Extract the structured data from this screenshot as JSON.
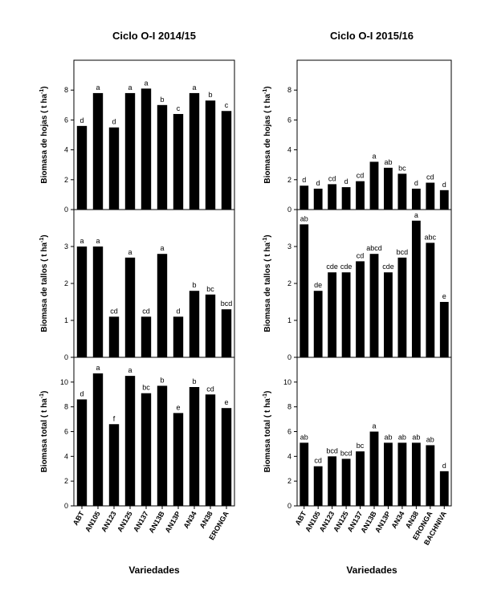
{
  "figure": {
    "left_title": "Ciclo O-I 2014/15",
    "right_title": "Ciclo O-I 2015/16",
    "x_title": "Variedades"
  },
  "chart_data": [
    {
      "type": "bar",
      "column": "left",
      "row": 0,
      "ylabel": "Biomasa de hojas ( t ha-1)",
      "ylabel_main": "Biomasa de hojas ( t ha",
      "ylabel_sup": "-1",
      "ylabel_end": ")",
      "ylim": [
        0,
        10
      ],
      "yticks": [
        0,
        2,
        4,
        6,
        8
      ],
      "categories": [
        "ABT",
        "AN105",
        "AN123",
        "AN125",
        "AN137",
        "AN13B",
        "AN13P",
        "AN34",
        "AN38",
        "ERONGA"
      ],
      "values": [
        5.6,
        7.8,
        5.5,
        7.8,
        8.1,
        7.0,
        6.4,
        7.8,
        7.3,
        6.6
      ],
      "letters": [
        "d",
        "a",
        "d",
        "a",
        "a",
        "b",
        "c",
        "a",
        "b",
        "c"
      ],
      "show_xticks": false
    },
    {
      "type": "bar",
      "column": "left",
      "row": 1,
      "ylabel": "Biomasa de tallos ( t ha-1)",
      "ylabel_main": "Biomasa de tallos ( t ha",
      "ylabel_sup": "-1",
      "ylabel_end": ")",
      "ylim": [
        0,
        4
      ],
      "yticks": [
        0,
        1,
        2,
        3
      ],
      "categories": [
        "ABT",
        "AN105",
        "AN123",
        "AN125",
        "AN137",
        "AN13B",
        "AN13P",
        "AN34",
        "AN38",
        "ERONGA"
      ],
      "values": [
        3.0,
        3.0,
        1.1,
        2.7,
        1.1,
        2.8,
        1.1,
        1.8,
        1.7,
        1.3
      ],
      "letters": [
        "a",
        "a",
        "cd",
        "a",
        "cd",
        "a",
        "d",
        "b",
        "bc",
        "bcd"
      ],
      "show_xticks": false
    },
    {
      "type": "bar",
      "column": "left",
      "row": 2,
      "ylabel": "Biomasa total ( t ha-1)",
      "ylabel_main": "Biomasa total ( t ha",
      "ylabel_sup": "-1",
      "ylabel_end": ")",
      "ylim": [
        0,
        12
      ],
      "yticks": [
        0,
        2,
        4,
        6,
        8,
        10
      ],
      "categories": [
        "ABT",
        "AN105",
        "AN123",
        "AN125",
        "AN137",
        "AN13B",
        "AN13P",
        "AN34",
        "AN38",
        "ERONGA"
      ],
      "values": [
        8.6,
        10.7,
        6.6,
        10.5,
        9.1,
        9.7,
        7.5,
        9.6,
        9.0,
        7.9
      ],
      "letters": [
        "d",
        "a",
        "f",
        "a",
        "bc",
        "b",
        "e",
        "b",
        "cd",
        "e"
      ],
      "show_xticks": true
    },
    {
      "type": "bar",
      "column": "right",
      "row": 0,
      "ylabel": "Biomasa de hojas ( t ha-1)",
      "ylabel_main": "Biomasa de hojas ( t ha",
      "ylabel_sup": "-1",
      "ylabel_end": ")",
      "ylim": [
        0,
        10
      ],
      "yticks": [
        0,
        2,
        4,
        6,
        8
      ],
      "categories": [
        "ABT",
        "AN105",
        "AN123",
        "AN125",
        "AN137",
        "AN13B",
        "AN13P",
        "AN34",
        "AN38",
        "ERONGA",
        "BACHNIVA"
      ],
      "values": [
        1.6,
        1.4,
        1.7,
        1.5,
        1.9,
        3.2,
        2.8,
        2.4,
        1.4,
        1.8,
        1.3
      ],
      "letters": [
        "d",
        "d",
        "cd",
        "d",
        "cd",
        "a",
        "ab",
        "bc",
        "d",
        "cd",
        "d"
      ],
      "show_xticks": false
    },
    {
      "type": "bar",
      "column": "right",
      "row": 1,
      "ylabel": "Biomasa de tallos ( t ha-1)",
      "ylabel_main": "Biomasa de tallos ( t ha",
      "ylabel_sup": "-1",
      "ylabel_end": ")",
      "ylim": [
        0,
        4
      ],
      "yticks": [
        0,
        1,
        2,
        3
      ],
      "categories": [
        "ABT",
        "AN105",
        "AN123",
        "AN125",
        "AN137",
        "AN13B",
        "AN13P",
        "AN34",
        "AN38",
        "ERONGA",
        "BACHNIVA"
      ],
      "values": [
        3.6,
        1.8,
        2.3,
        2.3,
        2.6,
        2.8,
        2.3,
        2.7,
        3.7,
        3.1,
        1.5
      ],
      "letters": [
        "ab",
        "de",
        "cde",
        "cde",
        "cd",
        "abcd",
        "cde",
        "bcd",
        "a",
        "abc",
        "e"
      ],
      "show_xticks": false
    },
    {
      "type": "bar",
      "column": "right",
      "row": 2,
      "ylabel": "Biomasa total ( t ha-1)",
      "ylabel_main": "Biomasa total ( t ha",
      "ylabel_sup": "-1",
      "ylabel_end": ")",
      "ylim": [
        0,
        12
      ],
      "yticks": [
        0,
        2,
        4,
        6,
        8,
        10
      ],
      "categories": [
        "ABT",
        "AN105",
        "AN123",
        "AN125",
        "AN137",
        "AN13B",
        "AN13P",
        "AN34",
        "AN38",
        "ERONGA",
        "BACHNIVA"
      ],
      "values": [
        5.1,
        3.2,
        4.0,
        3.8,
        4.4,
        6.0,
        5.1,
        5.1,
        5.1,
        4.9,
        2.8
      ],
      "letters": [
        "ab",
        "cd",
        "bcd",
        "bcd",
        "bc",
        "a",
        "ab",
        "ab",
        "ab",
        "ab",
        "d"
      ],
      "show_xticks": true
    }
  ],
  "style": {
    "bar_color": "#000000",
    "axis_color": "#000000",
    "background": "#ffffff"
  }
}
